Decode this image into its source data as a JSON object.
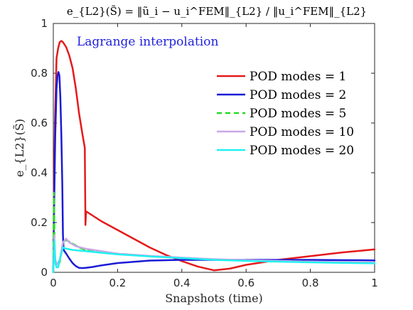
{
  "chart_data": {
    "type": "line",
    "title": "e_{L2}(S̃) = ‖ũ_i − u_i^FEM‖_{L2} / ‖u_i^FEM‖_{L2}",
    "xlabel": "Snapshots (time)",
    "ylabel": "e_{L2}(S̃)",
    "xlim": [
      0,
      1
    ],
    "ylim": [
      0,
      1
    ],
    "xticks": [
      "0",
      "0.2",
      "0.4",
      "0.6",
      "0.8",
      "1"
    ],
    "yticks": [
      "0",
      "0.2",
      "0.4",
      "0.6",
      "0.8",
      "1"
    ],
    "grid": false,
    "legend_position": "top-right",
    "annotation": {
      "text": "Lagrange interpolation",
      "color": "#1f1fe0"
    },
    "series": [
      {
        "name": "POD modes = 1",
        "color": "#e41a1c",
        "dash": "solid",
        "points": [
          [
            0,
            0
          ],
          [
            0.002,
            0.3
          ],
          [
            0.005,
            0.6
          ],
          [
            0.01,
            0.86
          ],
          [
            0.015,
            0.9
          ],
          [
            0.02,
            0.925
          ],
          [
            0.025,
            0.93
          ],
          [
            0.03,
            0.925
          ],
          [
            0.04,
            0.905
          ],
          [
            0.05,
            0.87
          ],
          [
            0.06,
            0.82
          ],
          [
            0.07,
            0.74
          ],
          [
            0.08,
            0.64
          ],
          [
            0.09,
            0.56
          ],
          [
            0.098,
            0.5
          ],
          [
            0.1,
            0.19
          ],
          [
            0.102,
            0.245
          ],
          [
            0.12,
            0.23
          ],
          [
            0.15,
            0.205
          ],
          [
            0.2,
            0.17
          ],
          [
            0.25,
            0.135
          ],
          [
            0.3,
            0.1
          ],
          [
            0.35,
            0.07
          ],
          [
            0.4,
            0.045
          ],
          [
            0.45,
            0.023
          ],
          [
            0.5,
            0.008
          ],
          [
            0.55,
            0.015
          ],
          [
            0.6,
            0.03
          ],
          [
            0.7,
            0.05
          ],
          [
            0.8,
            0.065
          ],
          [
            0.9,
            0.08
          ],
          [
            1.0,
            0.092
          ]
        ]
      },
      {
        "name": "POD modes = 2",
        "color": "#1a1ad6",
        "dash": "solid",
        "points": [
          [
            0,
            0
          ],
          [
            0.003,
            0.3
          ],
          [
            0.006,
            0.55
          ],
          [
            0.01,
            0.74
          ],
          [
            0.013,
            0.79
          ],
          [
            0.016,
            0.805
          ],
          [
            0.019,
            0.79
          ],
          [
            0.022,
            0.7
          ],
          [
            0.025,
            0.55
          ],
          [
            0.028,
            0.35
          ],
          [
            0.03,
            0.15
          ],
          [
            0.032,
            0.09
          ],
          [
            0.04,
            0.075
          ],
          [
            0.05,
            0.055
          ],
          [
            0.06,
            0.037
          ],
          [
            0.07,
            0.025
          ],
          [
            0.08,
            0.018
          ],
          [
            0.09,
            0.017
          ],
          [
            0.1,
            0.018
          ],
          [
            0.12,
            0.021
          ],
          [
            0.15,
            0.028
          ],
          [
            0.2,
            0.037
          ],
          [
            0.3,
            0.047
          ],
          [
            0.4,
            0.05
          ],
          [
            0.5,
            0.05
          ],
          [
            0.6,
            0.05
          ],
          [
            0.7,
            0.05
          ],
          [
            0.8,
            0.05
          ],
          [
            0.9,
            0.049
          ],
          [
            1.0,
            0.048
          ]
        ]
      },
      {
        "name": "POD modes = 5",
        "color": "#22dd22",
        "dash": "dashed",
        "points": [
          [
            0,
            0
          ],
          [
            0.002,
            0.32
          ],
          [
            0.004,
            0.1
          ],
          [
            0.006,
            0.05
          ],
          [
            0.01,
            0.03
          ],
          [
            0.02,
            0.04
          ],
          [
            0.03,
            0.12
          ],
          [
            0.04,
            0.13
          ],
          [
            0.06,
            0.115
          ],
          [
            0.08,
            0.1
          ],
          [
            0.1,
            0.09
          ],
          [
            0.2,
            0.075
          ],
          [
            0.3,
            0.065
          ],
          [
            0.4,
            0.058
          ],
          [
            0.5,
            0.052
          ],
          [
            0.6,
            0.048
          ],
          [
            0.7,
            0.045
          ],
          [
            0.8,
            0.042
          ],
          [
            0.9,
            0.04
          ],
          [
            1.0,
            0.038
          ]
        ]
      },
      {
        "name": "POD modes = 10",
        "color": "#c9a8e8",
        "dash": "solid",
        "points": [
          [
            0,
            0
          ],
          [
            0.003,
            0.15
          ],
          [
            0.006,
            0.05
          ],
          [
            0.01,
            0.03
          ],
          [
            0.02,
            0.05
          ],
          [
            0.03,
            0.12
          ],
          [
            0.04,
            0.135
          ],
          [
            0.05,
            0.12
          ],
          [
            0.07,
            0.105
          ],
          [
            0.1,
            0.095
          ],
          [
            0.15,
            0.085
          ],
          [
            0.2,
            0.075
          ],
          [
            0.3,
            0.066
          ],
          [
            0.4,
            0.059
          ],
          [
            0.5,
            0.053
          ],
          [
            0.6,
            0.049
          ],
          [
            0.7,
            0.046
          ],
          [
            0.8,
            0.043
          ],
          [
            0.9,
            0.041
          ],
          [
            1.0,
            0.039
          ]
        ]
      },
      {
        "name": "POD modes = 20",
        "color": "#22f0f0",
        "dash": "solid",
        "points": [
          [
            0,
            0
          ],
          [
            0.003,
            0.13
          ],
          [
            0.006,
            0.04
          ],
          [
            0.01,
            0.02
          ],
          [
            0.015,
            0.02
          ],
          [
            0.02,
            0.05
          ],
          [
            0.03,
            0.1
          ],
          [
            0.04,
            0.095
          ],
          [
            0.06,
            0.09
          ],
          [
            0.1,
            0.085
          ],
          [
            0.2,
            0.072
          ],
          [
            0.3,
            0.064
          ],
          [
            0.4,
            0.057
          ],
          [
            0.5,
            0.05
          ],
          [
            0.6,
            0.046
          ],
          [
            0.7,
            0.043
          ],
          [
            0.8,
            0.04
          ],
          [
            0.9,
            0.038
          ],
          [
            1.0,
            0.036
          ]
        ]
      }
    ]
  }
}
